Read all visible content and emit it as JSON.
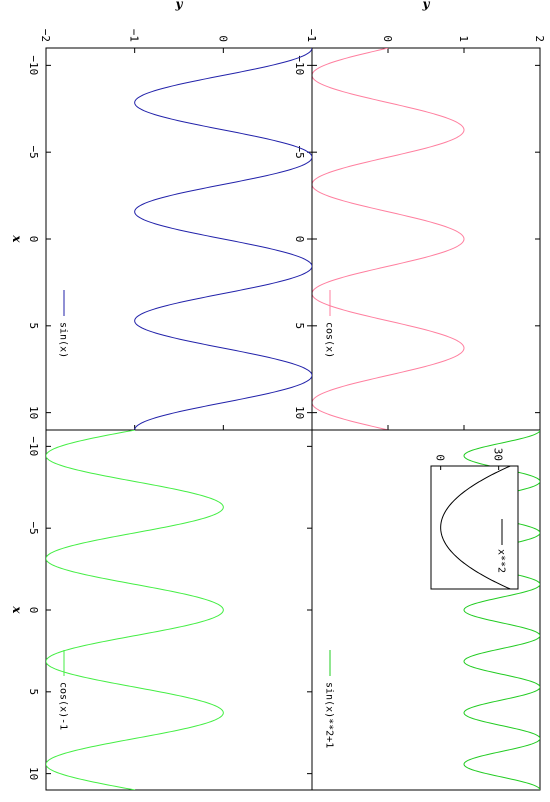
{
  "chart_data": [
    {
      "type": "line",
      "panel": "top-left",
      "xlabel": "",
      "ylabel": "y",
      "xlim": [
        -11,
        11
      ],
      "ylim": [
        -1,
        2
      ],
      "x_ticks": [
        "−10",
        "−5",
        "0",
        "5",
        "10"
      ],
      "y_ticks": [
        "−1",
        "0",
        "1",
        "2"
      ],
      "legend_position": "bottom-right",
      "series": [
        {
          "name": "cos(x)",
          "expression": "cos(x)",
          "color": "#ff7f9f",
          "x_range": [
            -11,
            11
          ]
        }
      ]
    },
    {
      "type": "line",
      "panel": "top-right",
      "xlabel": "",
      "ylabel": "",
      "xlim": [
        -11,
        11
      ],
      "ylim": [
        -1,
        2
      ],
      "x_ticks": [],
      "y_ticks": [],
      "legend_position": "bottom-right",
      "series": [
        {
          "name": "sin(x)**2+1",
          "expression": "sin(x)**2+1",
          "color": "#22cc22",
          "x_range": [
            -11,
            11
          ]
        }
      ],
      "inset": {
        "type": "line",
        "position": "top-left",
        "xlim": [
          -6,
          6
        ],
        "ylim": [
          -5,
          40
        ],
        "y_ticks": [
          "0",
          "30"
        ],
        "legend_position": "top-right",
        "series": [
          {
            "name": "x**2",
            "expression": "x**2",
            "color": "#000000",
            "x_range": [
              -6,
              6
            ]
          }
        ]
      }
    },
    {
      "type": "line",
      "panel": "bottom-left",
      "xlabel": "x",
      "ylabel": "y",
      "xlim": [
        -11,
        11
      ],
      "ylim": [
        -2,
        1
      ],
      "x_ticks": [
        "−10",
        "−5",
        "0",
        "5",
        "10"
      ],
      "y_ticks": [
        "−2",
        "−1",
        "0",
        "1"
      ],
      "legend_position": "bottom-right",
      "series": [
        {
          "name": "sin(x)",
          "expression": "sin(x)",
          "color": "#2222aa",
          "x_range": [
            -11,
            11
          ]
        }
      ]
    },
    {
      "type": "line",
      "panel": "bottom-right",
      "xlabel": "x",
      "ylabel": "",
      "xlim": [
        -11,
        11
      ],
      "ylim": [
        -2,
        1
      ],
      "x_ticks": [
        "−10",
        "−5",
        "0",
        "5",
        "10"
      ],
      "y_ticks": [],
      "legend_position": "bottom-right",
      "series": [
        {
          "name": "cos(x)-1",
          "expression": "cos(x)-1",
          "color": "#44ee44",
          "x_range": [
            -11,
            11
          ]
        }
      ]
    }
  ]
}
